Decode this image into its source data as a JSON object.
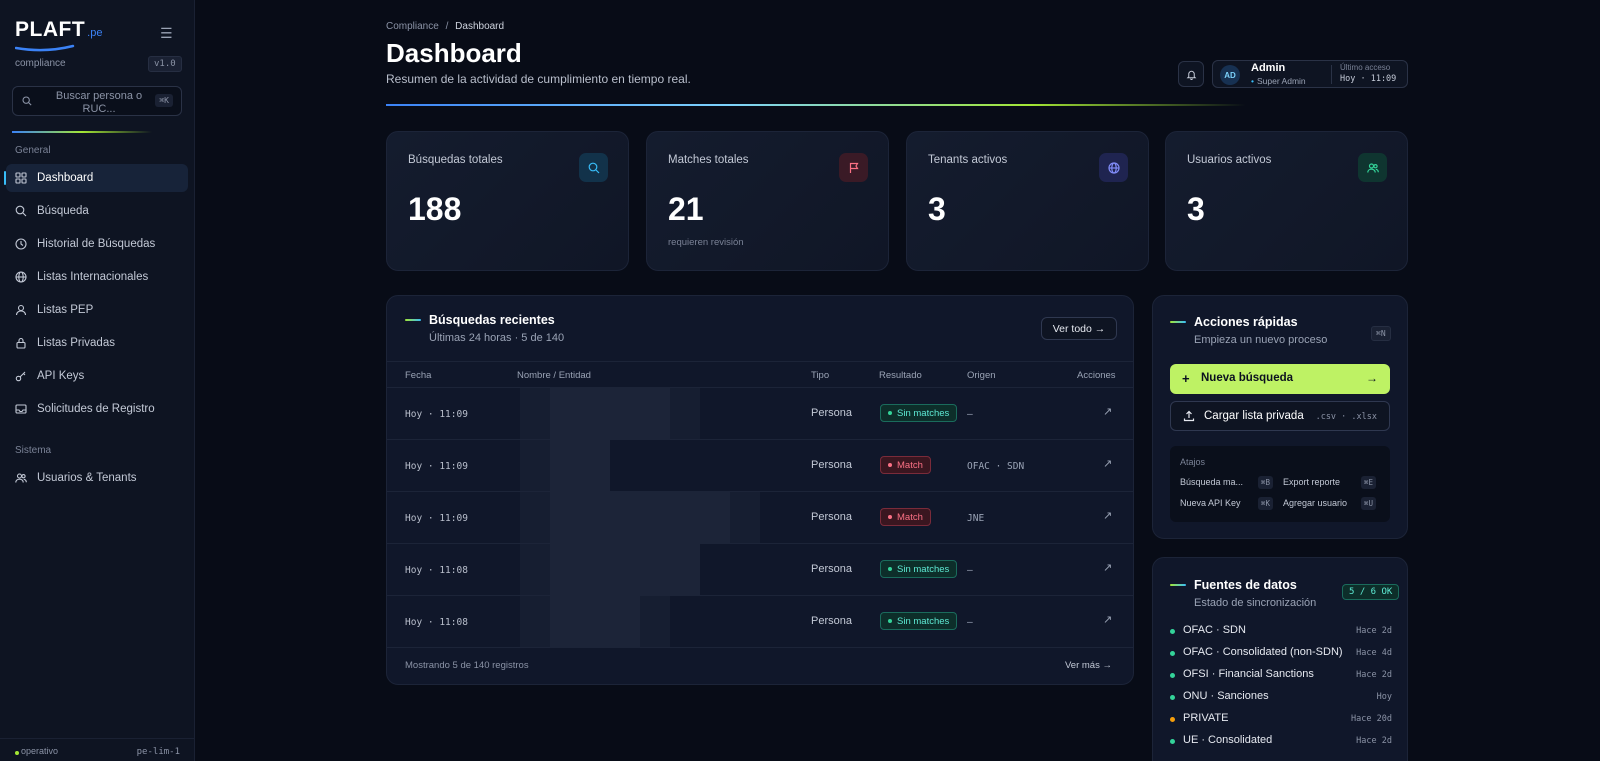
{
  "brand": {
    "logo": "PLAFT",
    "logo_suffix": ".pe",
    "subtitle": "compliance",
    "version": "v1.0"
  },
  "search": {
    "placeholder": "Buscar persona o RUC...",
    "shortcut": "⌘K"
  },
  "sidebar": {
    "section_general": "General",
    "section_system": "Sistema",
    "items": [
      {
        "label": "Dashboard",
        "icon": "grid-icon",
        "active": true
      },
      {
        "label": "Búsqueda",
        "icon": "search-icon"
      },
      {
        "label": "Historial de Búsquedas",
        "icon": "clock-icon"
      },
      {
        "label": "Listas Internacionales",
        "icon": "globe-icon"
      },
      {
        "label": "Listas PEP",
        "icon": "user-icon"
      },
      {
        "label": "Listas Privadas",
        "icon": "lock-icon"
      },
      {
        "label": "API Keys",
        "icon": "key-icon"
      },
      {
        "label": "Solicitudes de Registro",
        "icon": "inbox-icon"
      },
      {
        "label": "Usuarios & Tenants",
        "icon": "users-icon"
      }
    ],
    "footer_status": "operativo",
    "footer_region": "pe-lim-1"
  },
  "header": {
    "breadcrumb_parent": "Compliance",
    "breadcrumb_sep": "/",
    "breadcrumb_current": "Dashboard",
    "title": "Dashboard",
    "subtitle": "Resumen de la actividad de cumplimiento en tiempo real."
  },
  "user": {
    "initials": "AD",
    "name": "Admin",
    "role": "Super Admin",
    "last_access_label": "Último acceso",
    "last_access_value": "Hoy · 11:09"
  },
  "stats": [
    {
      "label": "Búsquedas totales",
      "value": "188",
      "sub": "",
      "icon": "search-icon",
      "color": "#38bdf8"
    },
    {
      "label": "Matches totales",
      "value": "21",
      "sub": "requieren revisión",
      "icon": "flag-icon",
      "color": "#fb7185"
    },
    {
      "label": "Tenants activos",
      "value": "3",
      "sub": "",
      "icon": "globe-icon",
      "color": "#818cf8"
    },
    {
      "label": "Usuarios activos",
      "value": "3",
      "sub": "",
      "icon": "users-icon",
      "color": "#34d399"
    }
  ],
  "recent": {
    "title": "Búsquedas recientes",
    "subtitle": "Últimas 24 horas · 5 de 140",
    "view_all": "Ver todo →",
    "columns": [
      "Fecha",
      "Nombre / Entidad",
      "Tipo",
      "Resultado",
      "Origen",
      "Acciones"
    ],
    "rows": [
      {
        "date": "Hoy · 11:09",
        "type": "Persona",
        "result": "Sin matches",
        "result_kind": "ok",
        "origin": "—"
      },
      {
        "date": "Hoy · 11:09",
        "type": "Persona",
        "result": "Match",
        "result_kind": "match",
        "origin": "OFAC · SDN"
      },
      {
        "date": "Hoy · 11:09",
        "type": "Persona",
        "result": "Match",
        "result_kind": "match",
        "origin": "JNE"
      },
      {
        "date": "Hoy · 11:08",
        "type": "Persona",
        "result": "Sin matches",
        "result_kind": "ok",
        "origin": "—"
      },
      {
        "date": "Hoy · 11:08",
        "type": "Persona",
        "result": "Sin matches",
        "result_kind": "ok",
        "origin": "—"
      }
    ],
    "footer": "Mostrando 5 de 140 registros",
    "more": "Ver más →"
  },
  "quick": {
    "title": "Acciones rápidas",
    "subtitle": "Empieza un nuevo proceso",
    "shortcut": "⌘N",
    "new_search": "Nueva búsqueda",
    "upload": "Cargar lista privada",
    "upload_ext": ".csv · .xlsx",
    "shortcuts_title": "Atajos",
    "shortcuts": [
      {
        "label": "Búsqueda ma...",
        "key": "⌘B"
      },
      {
        "label": "Export reporte",
        "key": "⌘E"
      },
      {
        "label": "Nueva API Key",
        "key": "⌘K"
      },
      {
        "label": "Agregar usuario",
        "key": "⌘U"
      }
    ]
  },
  "sources": {
    "title": "Fuentes de datos",
    "subtitle": "Estado de sincronización",
    "status": "5 / 6 OK",
    "items": [
      {
        "name": "OFAC · SDN",
        "time": "Hace 2d",
        "color": "#34d399"
      },
      {
        "name": "OFAC · Consolidated (non-SDN)",
        "time": "Hace 4d",
        "color": "#34d399"
      },
      {
        "name": "OFSI · Financial Sanctions",
        "time": "Hace 2d",
        "color": "#34d399"
      },
      {
        "name": "ONU · Sanciones",
        "time": "Hoy",
        "color": "#34d399"
      },
      {
        "name": "PRIVATE",
        "time": "Hace 20d",
        "color": "#f59e0b"
      },
      {
        "name": "UE · Consolidated",
        "time": "Hace 2d",
        "color": "#34d399"
      }
    ]
  }
}
